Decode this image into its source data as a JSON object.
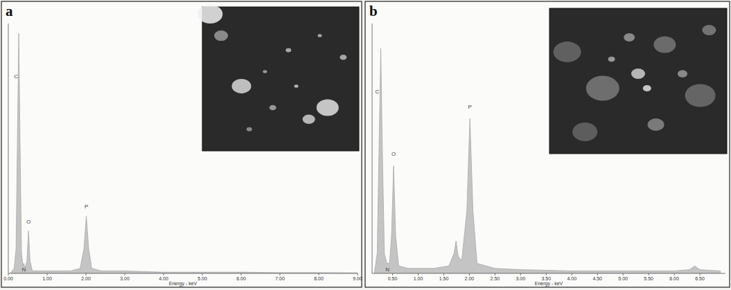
{
  "chart_data": [
    {
      "type": "area",
      "title": "a",
      "x_label": "Energy - keV",
      "color": "#c4c4c4",
      "x": [
        0.05,
        0.15,
        0.2,
        0.24,
        0.27,
        0.3,
        0.34,
        0.38,
        0.4,
        0.43,
        0.48,
        0.52,
        0.56,
        0.62,
        0.8,
        1.2,
        1.6,
        1.85,
        1.95,
        2.01,
        2.07,
        2.15,
        2.4,
        3.0,
        4.0,
        5.0,
        6.0,
        7.0,
        8.0,
        9.0
      ],
      "values": [
        0,
        2,
        10,
        60,
        96,
        55,
        8,
        3,
        4,
        2,
        5,
        17,
        5,
        1,
        1,
        1,
        1,
        2,
        10,
        23,
        10,
        2,
        1,
        1,
        0.5,
        0.5,
        0.5,
        0.3,
        0.3,
        0.2
      ],
      "xlim": [
        0,
        9
      ],
      "xticks": [
        {
          "value": 0,
          "label": "0.00"
        },
        {
          "value": 1,
          "label": "1.00"
        },
        {
          "value": 2,
          "label": "2.00"
        },
        {
          "value": 3,
          "label": "3.00"
        },
        {
          "value": 4,
          "label": "4.00"
        },
        {
          "value": 5,
          "label": "5.00"
        },
        {
          "value": 6,
          "label": "6.00"
        },
        {
          "value": 7,
          "label": "7.00"
        },
        {
          "value": 8,
          "label": "8.00"
        },
        {
          "value": 9,
          "label": "9.00"
        }
      ],
      "ylim": [
        0,
        100
      ],
      "tick_labels": "x",
      "grid": false,
      "annotations": [
        {
          "text": "C",
          "x": 0.2,
          "y": 78
        },
        {
          "text": "O",
          "x": 0.52,
          "y": 20
        },
        {
          "text": "N",
          "x": 0.4,
          "y": 0.8
        },
        {
          "text": "P",
          "x": 2.01,
          "y": 26
        }
      ]
    },
    {
      "type": "area",
      "title": "b",
      "x_label": "Energy - keV",
      "color": "#c4c4c4",
      "x": [
        0.15,
        0.2,
        0.24,
        0.27,
        0.3,
        0.34,
        0.39,
        0.44,
        0.48,
        0.52,
        0.56,
        0.62,
        0.8,
        1.0,
        1.3,
        1.6,
        1.7,
        1.74,
        1.78,
        1.85,
        1.95,
        2.01,
        2.07,
        2.15,
        2.5,
        3.0,
        4.0,
        5.0,
        6.0,
        6.3,
        6.4,
        6.5,
        6.9
      ],
      "values": [
        1,
        8,
        55,
        90,
        50,
        8,
        4,
        4,
        15,
        43,
        15,
        3,
        2,
        2,
        2,
        3,
        8,
        13,
        7,
        5,
        25,
        62,
        25,
        4,
        2,
        1.5,
        1,
        1,
        1,
        1.5,
        3,
        1.5,
        1
      ],
      "xlim": [
        0.1,
        7.0
      ],
      "xticks": [
        {
          "value": 0.5,
          "label": "0.50"
        },
        {
          "value": 1,
          "label": "1.00"
        },
        {
          "value": 1.5,
          "label": "1.50"
        },
        {
          "value": 2,
          "label": "2.00"
        },
        {
          "value": 2.5,
          "label": "2.50"
        },
        {
          "value": 3,
          "label": "3.00"
        },
        {
          "value": 3.5,
          "label": "3.50"
        },
        {
          "value": 4,
          "label": "4.00"
        },
        {
          "value": 4.5,
          "label": "4.50"
        },
        {
          "value": 5,
          "label": "5.00"
        },
        {
          "value": 5.5,
          "label": "5.50"
        },
        {
          "value": 6,
          "label": "6.00"
        },
        {
          "value": 6.5,
          "label": "6.50"
        }
      ],
      "ylim": [
        0,
        100
      ],
      "tick_labels": "x",
      "grid": false,
      "annotations": [
        {
          "text": "C",
          "x": 0.2,
          "y": 72
        },
        {
          "text": "O",
          "x": 0.52,
          "y": 47
        },
        {
          "text": "N",
          "x": 0.4,
          "y": 0.8
        },
        {
          "text": "P",
          "x": 2.01,
          "y": 66
        }
      ]
    }
  ]
}
